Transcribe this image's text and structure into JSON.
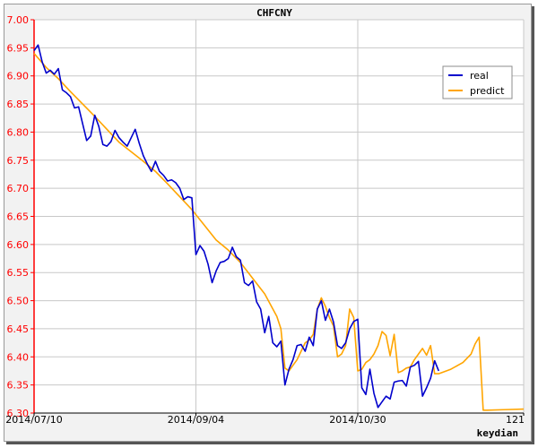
{
  "chart_data": {
    "type": "line",
    "title": "CHFCNY",
    "xlabel": "keydian",
    "ylabel": "",
    "xlim": [
      0,
      121
    ],
    "ylim": [
      6.3,
      7.0
    ],
    "yticks": [
      "6.30",
      "6.35",
      "6.40",
      "6.45",
      "6.50",
      "6.55",
      "6.60",
      "6.65",
      "6.70",
      "6.75",
      "6.80",
      "6.85",
      "6.90",
      "6.95",
      "7.00"
    ],
    "xticks": [
      {
        "x": 0,
        "label": "2014/07/10"
      },
      {
        "x": 40,
        "label": "2014/09/04"
      },
      {
        "x": 80,
        "label": "2014/10/30"
      },
      {
        "x": 121,
        "label": "121"
      }
    ],
    "grid": true,
    "legend_position": "top-right",
    "colors": {
      "real": "#0000cc",
      "predict": "#ffa500",
      "axis": "#ff0000",
      "grid": "#c8c8c8"
    },
    "series": [
      {
        "name": "real",
        "color": "#0000cc",
        "points": [
          [
            0,
            6.945
          ],
          [
            1,
            6.955
          ],
          [
            2,
            6.925
          ],
          [
            3,
            6.905
          ],
          [
            4,
            6.91
          ],
          [
            5,
            6.903
          ],
          [
            6,
            6.913
          ],
          [
            7,
            6.875
          ],
          [
            8,
            6.87
          ],
          [
            9,
            6.863
          ],
          [
            10,
            6.843
          ],
          [
            11,
            6.845
          ],
          [
            12,
            6.815
          ],
          [
            13,
            6.785
          ],
          [
            14,
            6.793
          ],
          [
            15,
            6.83
          ],
          [
            16,
            6.81
          ],
          [
            17,
            6.778
          ],
          [
            18,
            6.775
          ],
          [
            19,
            6.783
          ],
          [
            20,
            6.803
          ],
          [
            21,
            6.79
          ],
          [
            22,
            6.782
          ],
          [
            23,
            6.775
          ],
          [
            24,
            6.79
          ],
          [
            25,
            6.805
          ],
          [
            26,
            6.78
          ],
          [
            27,
            6.758
          ],
          [
            28,
            6.743
          ],
          [
            29,
            6.73
          ],
          [
            30,
            6.748
          ],
          [
            31,
            6.73
          ],
          [
            32,
            6.723
          ],
          [
            33,
            6.713
          ],
          [
            34,
            6.715
          ],
          [
            35,
            6.71
          ],
          [
            36,
            6.7
          ],
          [
            37,
            6.68
          ],
          [
            38,
            6.685
          ],
          [
            39,
            6.683
          ],
          [
            40,
            6.582
          ],
          [
            41,
            6.598
          ],
          [
            42,
            6.588
          ],
          [
            43,
            6.565
          ],
          [
            44,
            6.532
          ],
          [
            45,
            6.553
          ],
          [
            46,
            6.568
          ],
          [
            47,
            6.57
          ],
          [
            48,
            6.575
          ],
          [
            49,
            6.595
          ],
          [
            50,
            6.578
          ],
          [
            51,
            6.572
          ],
          [
            52,
            6.532
          ],
          [
            53,
            6.527
          ],
          [
            54,
            6.535
          ],
          [
            55,
            6.498
          ],
          [
            56,
            6.485
          ],
          [
            57,
            6.443
          ],
          [
            58,
            6.472
          ],
          [
            59,
            6.425
          ],
          [
            60,
            6.418
          ],
          [
            61,
            6.428
          ],
          [
            62,
            6.35
          ],
          [
            63,
            6.378
          ],
          [
            64,
            6.395
          ],
          [
            65,
            6.42
          ],
          [
            66,
            6.422
          ],
          [
            67,
            6.41
          ],
          [
            68,
            6.435
          ],
          [
            69,
            6.42
          ],
          [
            70,
            6.485
          ],
          [
            71,
            6.5
          ],
          [
            72,
            6.465
          ],
          [
            73,
            6.485
          ],
          [
            74,
            6.462
          ],
          [
            75,
            6.42
          ],
          [
            76,
            6.415
          ],
          [
            77,
            6.425
          ],
          [
            78,
            6.45
          ],
          [
            79,
            6.463
          ],
          [
            80,
            6.467
          ],
          [
            81,
            6.345
          ],
          [
            82,
            6.333
          ],
          [
            83,
            6.378
          ],
          [
            84,
            6.335
          ],
          [
            85,
            6.31
          ],
          [
            86,
            6.32
          ],
          [
            87,
            6.33
          ],
          [
            88,
            6.325
          ],
          [
            89,
            6.355
          ],
          [
            90,
            6.357
          ],
          [
            91,
            6.358
          ],
          [
            92,
            6.348
          ],
          [
            93,
            6.382
          ],
          [
            94,
            6.385
          ],
          [
            95,
            6.392
          ],
          [
            96,
            6.33
          ],
          [
            97,
            6.345
          ],
          [
            98,
            6.362
          ],
          [
            99,
            6.393
          ],
          [
            100,
            6.375
          ]
        ]
      },
      {
        "name": "predict",
        "color": "#ffa500",
        "points": [
          [
            0,
            6.94
          ],
          [
            3,
            6.915
          ],
          [
            6,
            6.895
          ],
          [
            9,
            6.872
          ],
          [
            12,
            6.85
          ],
          [
            15,
            6.828
          ],
          [
            18,
            6.805
          ],
          [
            21,
            6.782
          ],
          [
            24,
            6.765
          ],
          [
            27,
            6.748
          ],
          [
            30,
            6.73
          ],
          [
            33,
            6.708
          ],
          [
            36,
            6.685
          ],
          [
            39,
            6.662
          ],
          [
            42,
            6.635
          ],
          [
            45,
            6.608
          ],
          [
            48,
            6.59
          ],
          [
            51,
            6.568
          ],
          [
            54,
            6.54
          ],
          [
            57,
            6.512
          ],
          [
            60,
            6.472
          ],
          [
            61,
            6.45
          ],
          [
            62,
            6.38
          ],
          [
            63,
            6.375
          ],
          [
            64,
            6.385
          ],
          [
            65,
            6.395
          ],
          [
            66,
            6.41
          ],
          [
            67,
            6.425
          ],
          [
            68,
            6.43
          ],
          [
            69,
            6.44
          ],
          [
            70,
            6.485
          ],
          [
            71,
            6.505
          ],
          [
            72,
            6.49
          ],
          [
            73,
            6.47
          ],
          [
            74,
            6.455
          ],
          [
            75,
            6.4
          ],
          [
            76,
            6.405
          ],
          [
            77,
            6.42
          ],
          [
            78,
            6.485
          ],
          [
            79,
            6.47
          ],
          [
            80,
            6.375
          ],
          [
            81,
            6.378
          ],
          [
            82,
            6.39
          ],
          [
            83,
            6.395
          ],
          [
            84,
            6.405
          ],
          [
            85,
            6.42
          ],
          [
            86,
            6.445
          ],
          [
            87,
            6.438
          ],
          [
            88,
            6.402
          ],
          [
            89,
            6.44
          ],
          [
            90,
            6.372
          ],
          [
            91,
            6.375
          ],
          [
            92,
            6.38
          ],
          [
            93,
            6.382
          ],
          [
            94,
            6.395
          ],
          [
            95,
            6.405
          ],
          [
            96,
            6.415
          ],
          [
            97,
            6.403
          ],
          [
            98,
            6.42
          ],
          [
            99,
            6.37
          ],
          [
            100,
            6.37
          ],
          [
            103,
            6.378
          ],
          [
            106,
            6.39
          ],
          [
            108,
            6.405
          ],
          [
            109,
            6.423
          ],
          [
            110,
            6.435
          ],
          [
            111,
            6.305
          ],
          [
            112,
            6.305
          ],
          [
            116,
            6.306
          ],
          [
            121,
            6.307
          ]
        ]
      }
    ]
  }
}
